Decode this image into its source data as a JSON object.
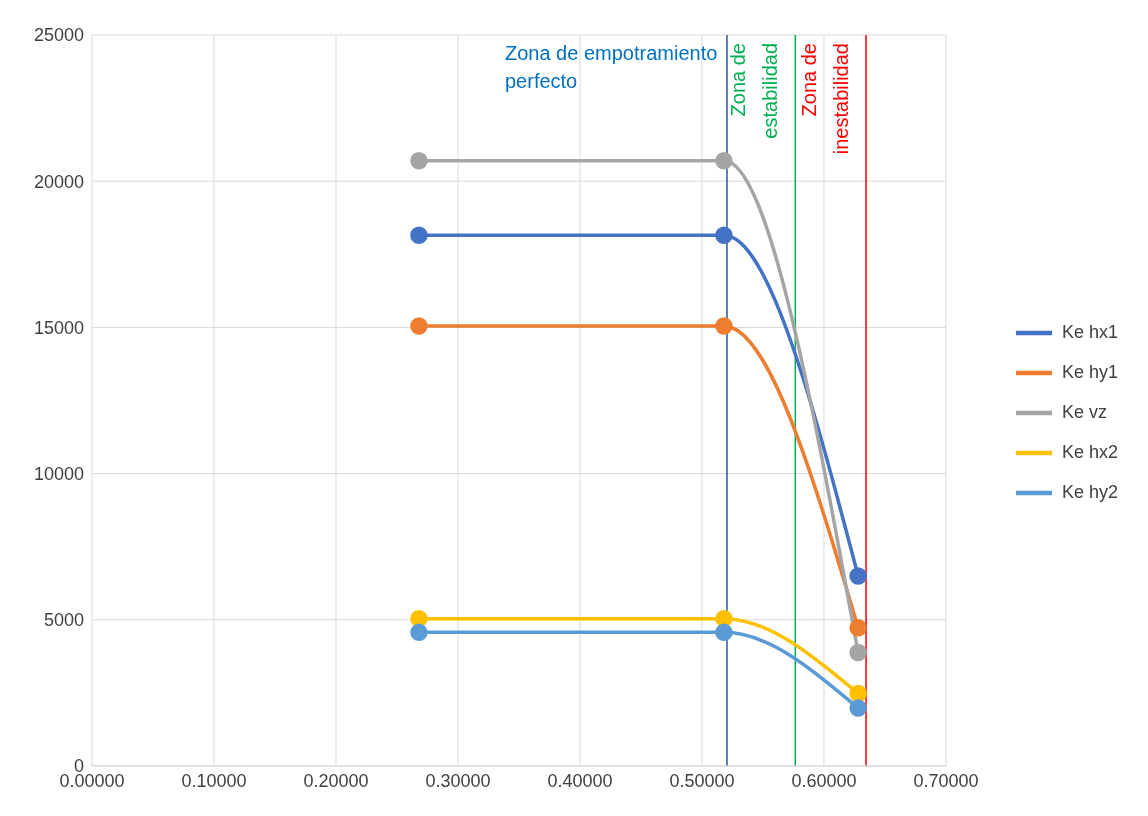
{
  "chart_data": {
    "type": "line",
    "x": [
      0.268,
      0.518,
      0.628
    ],
    "series": [
      {
        "name": "Ke hx1",
        "color": "#4472c4",
        "values": [
          18150,
          18150,
          6500
        ]
      },
      {
        "name": "Ke hy1",
        "color": "#ed7d31",
        "values": [
          15050,
          15050,
          4730
        ]
      },
      {
        "name": "Ke vz",
        "color": "#a5a5a5",
        "values": [
          20700,
          20700,
          3880
        ]
      },
      {
        "name": "Ke hx2",
        "color": "#ffc000",
        "values": [
          5040,
          5040,
          2480
        ]
      },
      {
        "name": "Ke hy2",
        "color": "#5b9bd5",
        "values": [
          4570,
          4570,
          1980
        ]
      }
    ],
    "xlim": [
      0,
      0.7
    ],
    "xticks": [
      {
        "value": 0,
        "label": "0.00000"
      },
      {
        "value": 0.1,
        "label": "0.10000"
      },
      {
        "value": 0.2,
        "label": "0.20000"
      },
      {
        "value": 0.3,
        "label": "0.30000"
      },
      {
        "value": 0.4,
        "label": "0.40000"
      },
      {
        "value": 0.5,
        "label": "0.50000"
      },
      {
        "value": 0.6,
        "label": "0.60000"
      },
      {
        "value": 0.7,
        "label": "0.70000"
      }
    ],
    "ylim": [
      0,
      25000
    ],
    "yticks": [
      0,
      5000,
      10000,
      15000,
      20000,
      25000
    ],
    "ref_lines": [
      {
        "axis": "x",
        "value": 0.5205,
        "label": "Zona de empotramiento\nperfecto",
        "color": "#2f5597"
      },
      {
        "axis": "x",
        "value": 0.5765,
        "label": "Zona de\nestabilidad",
        "color": "#00b050"
      },
      {
        "axis": "x",
        "value": 0.6345,
        "label": "Zona de\ninestabilidad",
        "color": "#ff0000"
      }
    ],
    "grid": true,
    "legend": "right",
    "marker": "circle",
    "line_style": "solid"
  }
}
